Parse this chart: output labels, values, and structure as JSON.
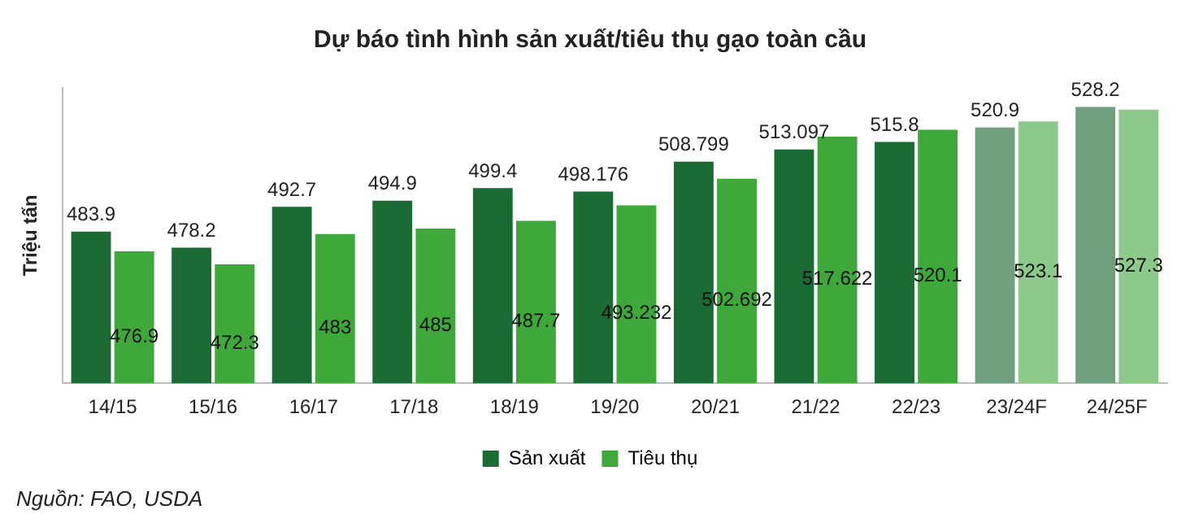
{
  "chart_data": {
    "type": "bar",
    "title": "Dự báo tình hình sản xuất/tiêu thụ gạo toàn cầu",
    "ylabel": "Triệu tấn",
    "categories": [
      "14/15",
      "15/16",
      "16/17",
      "17/18",
      "18/19",
      "19/20",
      "20/21",
      "21/22",
      "22/23",
      "23/24F",
      "24/25F"
    ],
    "series": [
      {
        "name": "Sản xuất",
        "color": "#1b6b34",
        "colors": [
          "#1b6b34",
          "#1b6b34",
          "#1b6b34",
          "#1b6b34",
          "#1b6b34",
          "#1b6b34",
          "#1b6b34",
          "#1b6b34",
          "#1b6b34",
          "#6f9f7c",
          "#6f9f7c"
        ],
        "values": [
          483.9,
          478.2,
          492.7,
          494.9,
          499.4,
          498.176,
          508.799,
          513.097,
          515.8,
          520.9,
          528.2
        ]
      },
      {
        "name": "Tiêu thụ",
        "color": "#3fa83b",
        "colors": [
          "#3fa83b",
          "#3fa83b",
          "#3fa83b",
          "#3fa83b",
          "#3fa83b",
          "#3fa83b",
          "#3fa83b",
          "#3fa83b",
          "#3fa83b",
          "#8cc98a",
          "#8cc98a"
        ],
        "values": [
          476.9,
          472.3,
          483,
          485,
          487.7,
          493.232,
          502.692,
          517.622,
          520.1,
          523.1,
          527.3
        ]
      }
    ],
    "ylim": [
      430,
      535
    ],
    "tick_labels": "x",
    "data_labels": true,
    "grid": false,
    "legend": "bottom",
    "annotations": [
      "Nguồn: FAO, USDA"
    ]
  }
}
